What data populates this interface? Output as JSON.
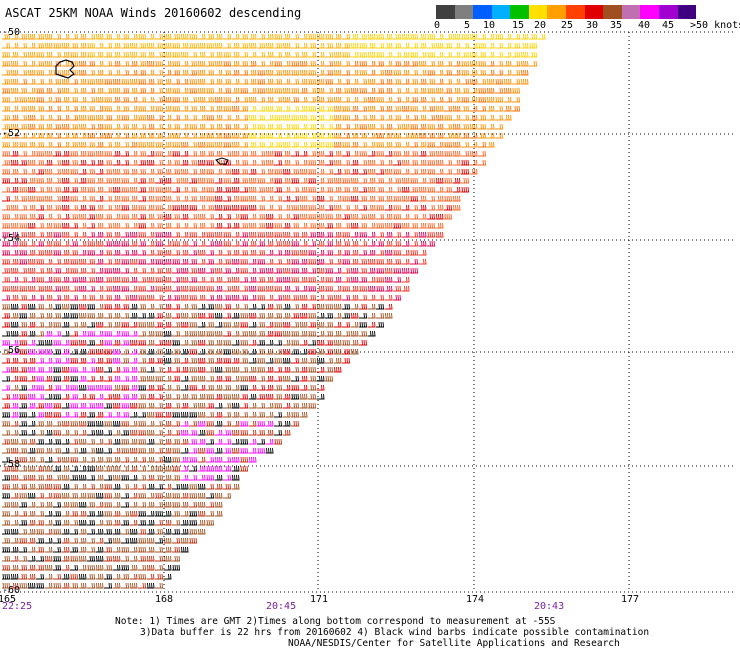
{
  "title": "ASCAT 25KM NOAA Winds 20160602 descending",
  "colorbar": {
    "colors": [
      "#404040",
      "#7f7f7f",
      "#0060ff",
      "#00b0ff",
      "#00c000",
      "#ffe000",
      "#ffa000",
      "#ff4000",
      "#e00000",
      "#a05020",
      "#c070b0",
      "#ff00ff",
      "#a000d0",
      "#400080"
    ],
    "labels": [
      "0",
      "5",
      "10",
      "15",
      "20",
      "25",
      "30",
      "35",
      "40",
      "45",
      ">50 knots"
    ]
  },
  "latitude_labels": [
    "-50",
    "-52",
    "-54",
    "-56",
    "-58",
    "-60"
  ],
  "longitude_labels": [
    "168",
    "171",
    "174",
    "177"
  ],
  "left_edge_lon_label": "165",
  "time_labels": [
    "22:25",
    "20:45",
    "20:43"
  ],
  "notes": [
    "Note: 1) Times are GMT 2)Times along bottom correspond to measurement at -55S",
    "3)Data buffer is 22 hrs from 20160602 4) Black wind barbs indicate possible contamination",
    "NOAA/NESDIS/Center for Satellite Applications and Research"
  ]
}
